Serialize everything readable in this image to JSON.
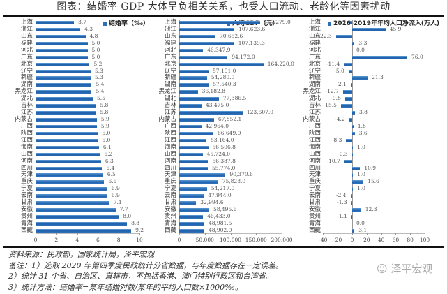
{
  "header": {
    "title": "图表：结婚率 GDP 大体呈负相关关系，也受人口流动、老龄化等因素扰动"
  },
  "chart_data": [
    {
      "type": "bar",
      "orientation": "horizontal",
      "title": "结婚率（‰）",
      "legend": [
        "结婚率（‰）"
      ],
      "categories": [
        "上海",
        "浙江",
        "山东",
        "福建",
        "河北",
        "广东",
        "北京",
        "辽宁",
        "新疆",
        "湖南",
        "黑龙江",
        "湖北",
        "吉林",
        "江苏",
        "内蒙古",
        "广西",
        "陕西",
        "江西",
        "海南",
        "山西",
        "河南",
        "四川",
        "天津",
        "重庆",
        "宁夏",
        "云南",
        "甘肃",
        "安徽",
        "贵州",
        "青海",
        "西藏"
      ],
      "values": [
        3.7,
        4.3,
        4.8,
        5.0,
        5.0,
        5.0,
        5.2,
        5.3,
        5.3,
        5.4,
        5.4,
        5.5,
        5.8,
        5.8,
        5.9,
        5.9,
        6.0,
        6.0,
        6.1,
        6.2,
        6.3,
        6.4,
        6.5,
        6.6,
        6.9,
        6.9,
        7.1,
        7.7,
        8.0,
        8.8,
        9.2
      ],
      "labels": [
        "3.7",
        "4.3",
        "4.8",
        "5.0",
        "5.0",
        "5.0",
        "5.2",
        "5.3",
        "5.3",
        "5.4",
        "5.4",
        "5.5",
        "5.8",
        "5.8",
        "5.9",
        "5.9",
        "6.0",
        "6.0",
        "6.1",
        "6.2",
        "6.3",
        "6.4",
        "6.5",
        "6.6",
        "6.9",
        "6.9",
        "7.1",
        "7.7",
        "8.0",
        "8.8",
        "9.2"
      ],
      "xlim": [
        0,
        10
      ],
      "xticks": [
        "0",
        "2",
        "4",
        "6",
        "8",
        "10"
      ],
      "xtick_values": [
        0,
        2,
        4,
        6,
        8,
        10
      ],
      "color": "#2f6fb8"
    },
    {
      "type": "bar",
      "orientation": "horizontal",
      "title": "人均GDP（元）",
      "legend": [
        "人均GDP（元）"
      ],
      "categories": [
        "上海",
        "浙江",
        "山东",
        "福建",
        "河北",
        "广东",
        "北京",
        "辽宁",
        "新疆",
        "湖南",
        "黑龙江",
        "湖北",
        "吉林",
        "江苏",
        "内蒙古",
        "广西",
        "陕西",
        "江西",
        "海南",
        "山西",
        "河南",
        "四川",
        "天津",
        "重庆",
        "宁夏",
        "云南",
        "甘肃",
        "安徽",
        "贵州",
        "青海",
        "西藏"
      ],
      "values": [
        157279.0,
        107623.6,
        70652.6,
        107139.3,
        46347.9,
        94172.0,
        164220.0,
        57191.0,
        54280.0,
        57540.3,
        36182.8,
        77386.5,
        43475.0,
        123607.0,
        67852.1,
        42964.0,
        66649.0,
        53164.0,
        56506.8,
        45724.0,
        56387.8,
        55774.0,
        90370.6,
        75828.0,
        54217.0,
        47944.0,
        32994.6,
        58495.6,
        46433.0,
        48981.5,
        48902.0
      ],
      "labels": [
        "157,279.0",
        "107,623.6",
        "70,652.6",
        "107,139.3",
        "46,347.9",
        "94,172.0",
        "164,220.0",
        "57,191.0",
        "54,280.0",
        "57,540.3",
        "36,182.8",
        "77,386.5",
        "43,475.0",
        "123,607.0",
        "67,852.1",
        "42,964.0",
        "66,649.0",
        "53,164.0",
        "56,506.8",
        "45,724.0",
        "56,387.8",
        "55,774.0",
        "90,370.6",
        "75,828.0",
        "54,217.0",
        "47,944.0",
        "32,994.6",
        "58,495.6",
        "46,433.0",
        "48,981.5",
        "48,902.0"
      ],
      "xlim": [
        0,
        200000
      ],
      "xticks": [
        "0",
        "50,000",
        "100,000",
        "150,000",
        "200,000"
      ],
      "xtick_values": [
        0,
        50000,
        100000,
        150000,
        200000
      ],
      "color": "#2f6fb8"
    },
    {
      "type": "bar",
      "orientation": "horizontal",
      "title": "2016-2019年年均人口净流入(万人)",
      "legend": [
        "2016-2019年年均人口净流入(万人)"
      ],
      "categories": [
        "上海",
        "浙江",
        "山东",
        "福建",
        "河北",
        "广东",
        "北京",
        "辽宁",
        "新疆",
        "湖南",
        "黑龙江",
        "湖北",
        "吉林",
        "江苏",
        "内蒙古",
        "广西",
        "陕西",
        "江西",
        "海南",
        "山西",
        "河南",
        "四川",
        "天津",
        "重庆",
        "宁夏",
        "云南",
        "甘肃",
        "安徽",
        "贵州",
        "青海",
        "西藏"
      ],
      "values": [
        -2.9,
        45.9,
        -22.3,
        3.3,
        0.0,
        76.0,
        -11.4,
        -5.0,
        21.3,
        -2.1,
        -12.7,
        -9.8,
        -15.5,
        3.8,
        -4.2,
        1.8,
        3.6,
        -8.3,
        1.0,
        -0.3,
        -10.7,
        10.9,
        1.0,
        15.6,
        1.0,
        -2.4,
        -1.3,
        12.3,
        -1.1,
        0.0,
        3.1
      ],
      "labels": [
        "-2.9",
        "45.9",
        "-22.3",
        "3.3",
        "0.0",
        "76.0",
        "-11.4",
        "-5.0",
        "21.3",
        "-2.1",
        "-12.7",
        "-9.8",
        "-15.5",
        "3.8",
        "-4.2",
        "1.8",
        "3.6",
        "-8.3",
        "1.0",
        "-0.3",
        "-10.7",
        "10.9",
        "1.0",
        "15.6",
        "1.0",
        "-2.4",
        "-1.3",
        "12.3",
        "-1.1",
        "0.0",
        "3.1"
      ],
      "xlim": [
        -40,
        100
      ],
      "xticks": [
        "-40",
        "-20",
        "0",
        "20",
        "40",
        "60",
        "80",
        "100"
      ],
      "xtick_values": [
        -40,
        -20,
        0,
        20,
        40,
        60,
        80,
        100
      ],
      "color": "#2f6fb8"
    }
  ],
  "footer": {
    "source": "资料来源：民政部，国家统计局，泽平宏观",
    "note1": "备注：1）选取 2020 年第四季度民政统计分省数据，与年度数据存在一定误差。",
    "note2": "2）统计 31 个省、自治区、直辖市，不包括香港、澳门特别行政区和台湾省。",
    "note3": "3）统计方法：结婚率=某年结婚对数/某年的平均人口数×1000‰。",
    "watermark": "泽平宏观",
    "watermark_icon": "wechat-icon"
  }
}
